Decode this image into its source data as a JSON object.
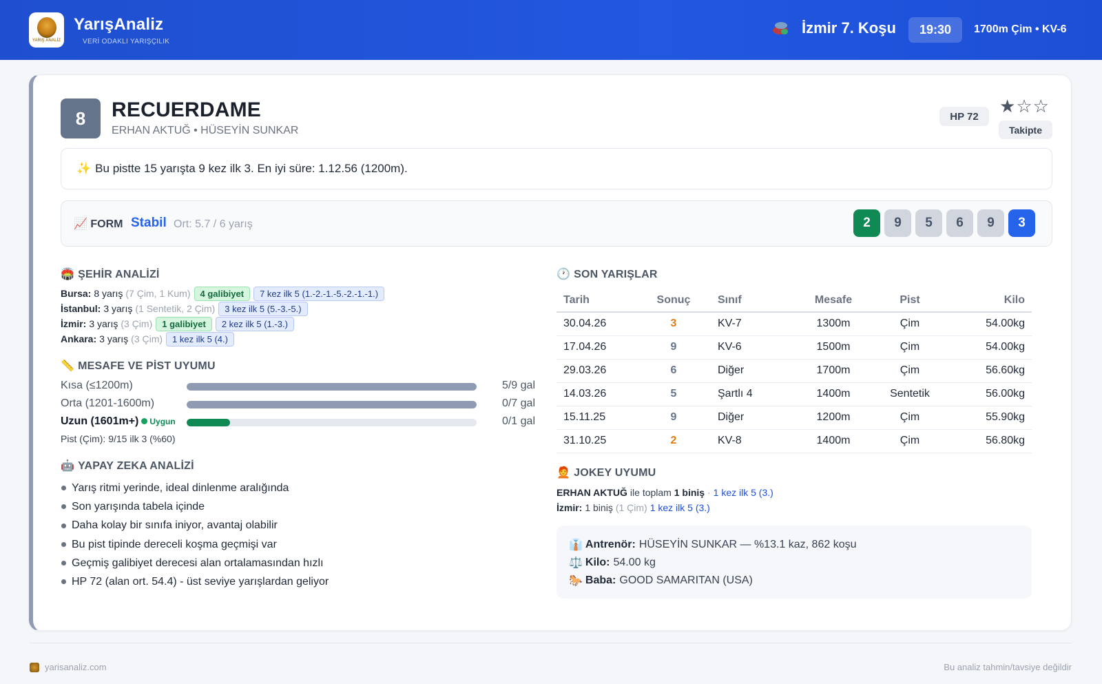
{
  "header": {
    "brand_name": "YarışAnaliz",
    "brand_tagline": "VERİ ODAKLI YARIŞÇILIK",
    "logo_text": "YARIŞ ANALİZ",
    "race_title": "İzmir 7. Koşu",
    "race_time": "19:30",
    "race_info": "1700m Çim • KV-6",
    "colors": {
      "gradient_start": "#1f4fcf",
      "gradient_end": "#1d4fd6"
    }
  },
  "horse": {
    "number": "8",
    "name": "RECUERDAME",
    "subtitle": "ERHAN AKTUĞ • HÜSEYİN SUNKAR",
    "hp": "HP 72",
    "rating_filled": 1,
    "rating_max": 3,
    "stars": [
      "★",
      "☆",
      "☆"
    ],
    "follow_label": "Takipte"
  },
  "note": {
    "icon": "sparkles-icon",
    "text": "Bu pistte 15 yarışta 9 kez ilk 3. En iyi süre: 1.12.56 (1200m)."
  },
  "form": {
    "label": "FORM",
    "icon": "chart-up-icon",
    "trend": "Stabil",
    "average": "Ort: 5.7 / 6 yarış",
    "results": [
      {
        "value": "2",
        "style": "win"
      },
      {
        "value": "9",
        "style": "normal"
      },
      {
        "value": "5",
        "style": "normal"
      },
      {
        "value": "6",
        "style": "normal"
      },
      {
        "value": "9",
        "style": "normal"
      },
      {
        "value": "3",
        "style": "last"
      }
    ]
  },
  "city_analysis": {
    "title": "ŞEHİR ANALİZİ",
    "icon": "stadium-icon",
    "rows": [
      {
        "city": "Bursa:",
        "races": "8 yarış",
        "detail": "(7 Çim, 1 Kum)",
        "win_tag": "4 galibiyet",
        "top5_tag": "7 kez ilk 5 (1.-2.-1.-5.-2.-1.-1.)"
      },
      {
        "city": "İstanbul:",
        "races": "3 yarış",
        "detail": "(1 Sentetik, 2 Çim)",
        "win_tag": "",
        "top5_tag": "3 kez ilk 5 (5.-3.-5.)"
      },
      {
        "city": "İzmir:",
        "races": "3 yarış",
        "detail": "(3 Çim)",
        "win_tag": "1 galibiyet",
        "top5_tag": "2 kez ilk 5 (1.-3.)"
      },
      {
        "city": "Ankara:",
        "races": "3 yarış",
        "detail": "(3 Çim)",
        "win_tag": "",
        "top5_tag": "1 kez ilk 5 (4.)"
      }
    ]
  },
  "distance": {
    "title": "MESAFE VE PİST UYUMU",
    "icon": "ruler-icon",
    "rows": [
      {
        "label": "Kısa (≤1200m)",
        "value": "5/9 gal",
        "fill": 1.0,
        "good": false,
        "badge": ""
      },
      {
        "label": "Orta (1201-1600m)",
        "value": "0/7 gal",
        "fill": 1.0,
        "good": false,
        "badge": ""
      },
      {
        "label": "Uzun (1601m+)",
        "value": "0/1 gal",
        "fill": 0.15,
        "good": true,
        "badge": "Uygun"
      }
    ],
    "pist_line": "Pist (Çim): 9/15 ilk 3 (%60)"
  },
  "ai_analysis": {
    "title": "YAPAY ZEKA ANALİZİ",
    "icon": "robot-icon",
    "items": [
      "Yarış ritmi yerinde, ideal dinlenme aralığında",
      "Son yarışında tabela içinde",
      "Daha kolay bir sınıfa iniyor, avantaj olabilir",
      "Bu pist tipinde dereceli koşma geçmişi var",
      "Geçmiş galibiyet derecesi alan ortalamasından hızlı",
      "HP 72 (alan ort. 54.4) - üst seviye yarışlardan geliyor"
    ]
  },
  "recent_races": {
    "title": "SON YARIŞLAR",
    "icon": "clock-icon",
    "columns": [
      "Tarih",
      "Sonuç",
      "Sınıf",
      "Mesafe",
      "Pist",
      "Kilo"
    ],
    "rows": [
      {
        "date": "30.04.26",
        "result": "3",
        "highlight": true,
        "class": "KV-7",
        "distance": "1300m",
        "track": "Çim",
        "weight": "54.00kg"
      },
      {
        "date": "17.04.26",
        "result": "9",
        "highlight": false,
        "class": "KV-6",
        "distance": "1500m",
        "track": "Çim",
        "weight": "54.00kg"
      },
      {
        "date": "29.03.26",
        "result": "6",
        "highlight": false,
        "class": "Diğer",
        "distance": "1700m",
        "track": "Çim",
        "weight": "56.60kg"
      },
      {
        "date": "14.03.26",
        "result": "5",
        "highlight": false,
        "class": "Şartlı 4",
        "distance": "1400m",
        "track": "Sentetik",
        "weight": "56.00kg"
      },
      {
        "date": "15.11.25",
        "result": "9",
        "highlight": false,
        "class": "Diğer",
        "distance": "1200m",
        "track": "Çim",
        "weight": "55.90kg"
      },
      {
        "date": "31.10.25",
        "result": "2",
        "highlight": true,
        "class": "KV-8",
        "distance": "1400m",
        "track": "Çim",
        "weight": "56.80kg"
      }
    ]
  },
  "jockey": {
    "title": "JOKEY UYUMU",
    "icon": "jockey-icon",
    "line1_name": "ERHAN AKTUĞ",
    "line1_mid": "ile toplam",
    "line1_count": "1 biniş",
    "line1_sep": "·",
    "line1_tag": "1 kez ilk 5 (3.)",
    "line2_city": "İzmir:",
    "line2_count": "1 biniş",
    "line2_detail": "(1 Çim)",
    "line2_tag": "1 kez ilk 5 (3.)"
  },
  "details": {
    "trainer_label": "Antrenör:",
    "trainer_value": "HÜSEYİN SUNKAR — %13.1 kaz, 862 koşu",
    "weight_label": "Kilo:",
    "weight_value": "54.00 kg",
    "sire_label": "Baba:",
    "sire_value": "GOOD SAMARITAN (USA)"
  },
  "footer": {
    "site": "yarisanaliz.com",
    "disclaimer": "Bu analiz tahmin/tavsiye değildir"
  }
}
